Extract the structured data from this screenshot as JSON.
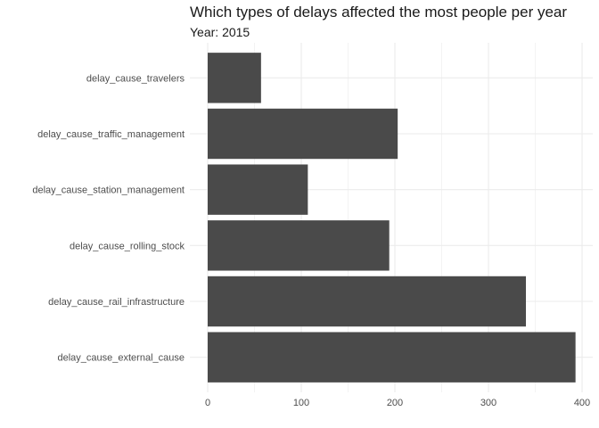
{
  "chart_data": {
    "type": "bar",
    "orientation": "horizontal",
    "title": "Which types of delays affected the most people per year",
    "subtitle": "Year: 2015",
    "xlabel": "",
    "ylabel": "",
    "categories": [
      "delay_cause_travelers",
      "delay_cause_traffic_management",
      "delay_cause_station_management",
      "delay_cause_rolling_stock",
      "delay_cause_rail_infrastructure",
      "delay_cause_external_cause"
    ],
    "values": [
      57,
      203,
      107,
      194,
      340,
      393
    ],
    "xlim": [
      0,
      400
    ],
    "xticks": [
      0,
      100,
      200,
      300,
      400
    ],
    "bar_color": "#4a4a4a",
    "grid_color": "#ebebeb",
    "grid": true
  }
}
